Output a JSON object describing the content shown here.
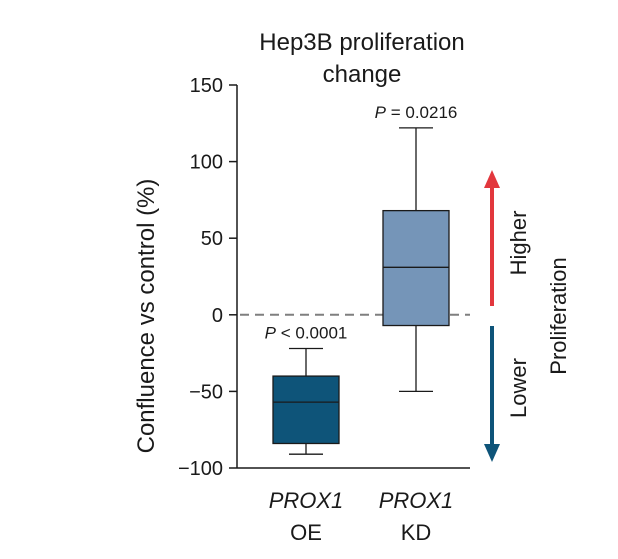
{
  "chart_data": {
    "type": "box",
    "title_lines": [
      "Hep3B proliferation",
      "change"
    ],
    "ylabel": "Confluence vs control (%)",
    "ylim": [
      -100,
      150
    ],
    "yticks": [
      {
        "value": 150,
        "label": "150"
      },
      {
        "value": 100,
        "label": "100"
      },
      {
        "value": 50,
        "label": "50"
      },
      {
        "value": 0,
        "label": "0"
      },
      {
        "value": -50,
        "label": "−50"
      },
      {
        "value": -100,
        "label": "−100"
      }
    ],
    "reference_line": {
      "value": 0,
      "style": "dashed",
      "color": "#7f7f7f"
    },
    "categories": [
      {
        "gene": "PROX1",
        "condition": "OE",
        "whisker_low": -91,
        "q1": -84,
        "median": -57,
        "q3": -40,
        "whisker_high": -22,
        "p_prefix": "P",
        "p_text": " < 0.0001",
        "color": "#0e5479"
      },
      {
        "gene": "PROX1",
        "condition": "KD",
        "whisker_low": -50,
        "q1": -7,
        "median": 31,
        "q3": 68,
        "whisker_high": 122,
        "p_prefix": "P",
        "p_text": " = 0.0216",
        "color": "#7595b8"
      }
    ],
    "annotations": {
      "higher_label": "Higher",
      "lower_label": "Lower",
      "proliferation_label": "Proliferation",
      "higher_color": "#e2373d",
      "lower_color": "#0e5479"
    }
  }
}
